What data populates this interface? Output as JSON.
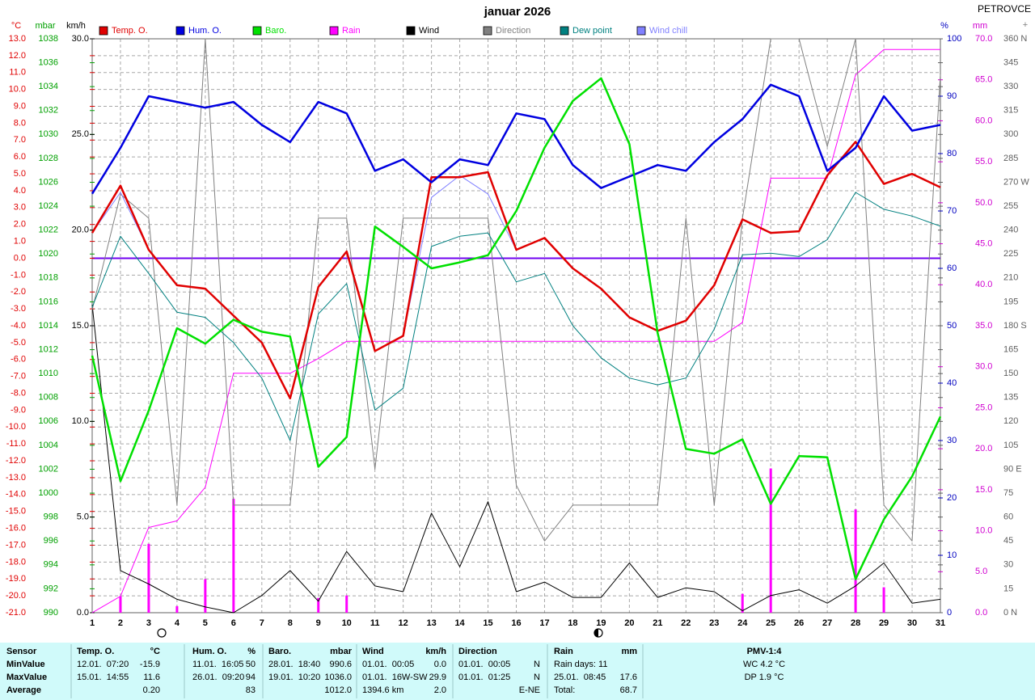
{
  "chart_data": {
    "type": "line",
    "title": "januar 2026",
    "station": "PETROVCE",
    "corner_mark": "+",
    "x": [
      1,
      2,
      3,
      4,
      5,
      6,
      7,
      8,
      9,
      10,
      11,
      12,
      13,
      14,
      15,
      16,
      17,
      18,
      19,
      20,
      21,
      22,
      23,
      24,
      25,
      26,
      27,
      28,
      29,
      30,
      31
    ],
    "xlim": [
      1,
      31
    ],
    "xticks": [
      1,
      2,
      3,
      4,
      5,
      6,
      7,
      8,
      9,
      10,
      11,
      12,
      13,
      14,
      15,
      16,
      17,
      18,
      19,
      20,
      21,
      22,
      23,
      24,
      25,
      26,
      27,
      28,
      29,
      30,
      31
    ],
    "grid": true,
    "ylabel": "°C",
    "ylim": [
      -21,
      13
    ],
    "yticks": [
      {
        "value": -21,
        "label": "-21.0"
      },
      {
        "value": -20,
        "label": "-20.0"
      },
      {
        "value": -19,
        "label": "-19.0"
      },
      {
        "value": -18,
        "label": "-18.0"
      },
      {
        "value": -17,
        "label": "-17.0"
      },
      {
        "value": -16,
        "label": "-16.0"
      },
      {
        "value": -15,
        "label": "-15.0"
      },
      {
        "value": -14,
        "label": "-14.0"
      },
      {
        "value": -13,
        "label": "-13.0"
      },
      {
        "value": -12,
        "label": "-12.0"
      },
      {
        "value": -11,
        "label": "-11.0"
      },
      {
        "value": -10,
        "label": "-10.0"
      },
      {
        "value": -9,
        "label": "-9.0"
      },
      {
        "value": -8,
        "label": "-8.0"
      },
      {
        "value": -7,
        "label": "-7.0"
      },
      {
        "value": -6,
        "label": "-6.0"
      },
      {
        "value": -5,
        "label": "-5.0"
      },
      {
        "value": -4,
        "label": "-4.0"
      },
      {
        "value": -3,
        "label": "-3.0"
      },
      {
        "value": -2,
        "label": "-2.0"
      },
      {
        "value": -1,
        "label": "-1.0"
      },
      {
        "value": 0,
        "label": "0.0"
      },
      {
        "value": 1,
        "label": "1.0"
      },
      {
        "value": 2,
        "label": "2.0"
      },
      {
        "value": 3,
        "label": "3.0"
      },
      {
        "value": 4,
        "label": "4.0"
      },
      {
        "value": 5,
        "label": "5.0"
      },
      {
        "value": 6,
        "label": "6.0"
      },
      {
        "value": 7,
        "label": "7.0"
      },
      {
        "value": 8,
        "label": "8.0"
      },
      {
        "value": 9,
        "label": "9.0"
      },
      {
        "value": 10,
        "label": "10.0"
      },
      {
        "value": 11,
        "label": "11.0"
      },
      {
        "value": 12,
        "label": "12.0"
      },
      {
        "value": 13,
        "label": "13.0"
      }
    ],
    "y2label": "mbar",
    "y2lim": [
      990,
      1038
    ],
    "y2ticks": [
      990,
      992,
      994,
      996,
      998,
      1000,
      1002,
      1004,
      1006,
      1008,
      1010,
      1012,
      1014,
      1016,
      1018,
      1020,
      1022,
      1024,
      1026,
      1028,
      1030,
      1032,
      1034,
      1036,
      1038
    ],
    "y3label": "km/h",
    "y3lim": [
      0,
      30
    ],
    "y3ticks": [
      {
        "value": 0,
        "label": "0.0"
      },
      {
        "value": 5,
        "label": "5.0"
      },
      {
        "value": 10,
        "label": "10.0"
      },
      {
        "value": 15,
        "label": "15.0"
      },
      {
        "value": 20,
        "label": "20.0"
      },
      {
        "value": 25,
        "label": "25.0"
      },
      {
        "value": 30,
        "label": "30.0"
      }
    ],
    "y4label": "%",
    "y4lim": [
      0,
      100
    ],
    "y4ticks": [
      0,
      10,
      20,
      30,
      40,
      50,
      60,
      70,
      80,
      90,
      100
    ],
    "y5label": "mm",
    "y5lim": [
      0,
      70
    ],
    "y5ticks": [
      {
        "value": 0,
        "label": "0.0"
      },
      {
        "value": 5,
        "label": "5.0"
      },
      {
        "value": 10,
        "label": "10.0"
      },
      {
        "value": 15,
        "label": "15.0"
      },
      {
        "value": 20,
        "label": "20.0"
      },
      {
        "value": 25,
        "label": "25.0"
      },
      {
        "value": 30,
        "label": "30.0"
      },
      {
        "value": 35,
        "label": "35.0"
      },
      {
        "value": 40,
        "label": "40.0"
      },
      {
        "value": 45,
        "label": "45.0"
      },
      {
        "value": 50,
        "label": "50.0"
      },
      {
        "value": 55,
        "label": "55.0"
      },
      {
        "value": 60,
        "label": "60.0"
      },
      {
        "value": 65,
        "label": "65.0"
      },
      {
        "value": 70,
        "label": "70.0"
      }
    ],
    "y6lim": [
      0,
      360
    ],
    "y6ticks": [
      {
        "value": 0,
        "label": "0 N"
      },
      15,
      30,
      45,
      60,
      75,
      {
        "value": 90,
        "label": "90 E"
      },
      105,
      120,
      135,
      150,
      165,
      {
        "value": 180,
        "label": "180 S"
      },
      195,
      210,
      225,
      240,
      255,
      {
        "value": 270,
        "label": "270 W"
      },
      285,
      300,
      315,
      330,
      345,
      {
        "value": 360,
        "label": "360 N"
      }
    ],
    "series": [
      {
        "name": "Temp. O.",
        "color": "#e00000",
        "axis": "y",
        "line_width": 2.5,
        "values": [
          1.5,
          4.3,
          0.5,
          -1.6,
          -1.8,
          -3.4,
          -5.0,
          -8.3,
          -1.7,
          0.4,
          -5.5,
          -4.6,
          4.8,
          4.8,
          5.1,
          0.5,
          1.2,
          -0.6,
          -1.8,
          -3.5,
          -4.3,
          -3.7,
          -1.6,
          2.3,
          1.5,
          1.6,
          4.9,
          6.9,
          4.4,
          5.0,
          4.2
        ]
      },
      {
        "name": "Hum. O.",
        "color": "#0000e0",
        "axis": "y4",
        "line_width": 2.5,
        "values": [
          73,
          81,
          90,
          89,
          88,
          89,
          85,
          82,
          89,
          87,
          77,
          79,
          75,
          79,
          78,
          87,
          86,
          78,
          74,
          76,
          78,
          77,
          82,
          86,
          92,
          90,
          77,
          81,
          90,
          84,
          85
        ]
      },
      {
        "name": "Baro.",
        "color": "#00e000",
        "axis": "y2",
        "line_width": 2.5,
        "values": [
          1011.5,
          1001.0,
          1006.9,
          1013.8,
          1012.5,
          1014.5,
          1013.5,
          1013.1,
          1002.2,
          1004.7,
          1022.3,
          1020.6,
          1018.8,
          1019.3,
          1019.9,
          1023.6,
          1028.9,
          1032.8,
          1034.7,
          1029.2,
          1013.4,
          1003.7,
          1003.3,
          1004.5,
          999.1,
          1003.1,
          1003.0,
          992.8,
          997.8,
          1001.4,
          1006.4
        ]
      },
      {
        "name": "Rain",
        "color": "#ff00ff",
        "axis": "y5",
        "line_width": 1,
        "type": "bar",
        "cumulative": true,
        "values": [
          0,
          2.0,
          8.4,
          0.8,
          4.1,
          13.9,
          0,
          0,
          1.8,
          2.1,
          0,
          0,
          0,
          0,
          0,
          0,
          0,
          0,
          0,
          0,
          0,
          0,
          0,
          2.3,
          17.6,
          0,
          0,
          12.6,
          3.1,
          0,
          0
        ]
      },
      {
        "name": "Wind",
        "color": "#000000",
        "axis": "y3",
        "line_width": 1,
        "values": [
          16.1,
          2.2,
          1.5,
          0.7,
          0.3,
          0.0,
          0.9,
          2.2,
          0.6,
          3.2,
          1.4,
          1.1,
          5.2,
          2.4,
          5.8,
          1.1,
          1.6,
          0.8,
          0.8,
          2.6,
          0.8,
          1.3,
          1.1,
          0.1,
          0.9,
          1.2,
          0.5,
          1.4,
          2.6,
          0.5,
          0.7
        ]
      },
      {
        "name": "Direction",
        "color": "#808080",
        "axis": "y6",
        "line_width": 1,
        "values": [
          190,
          262.5,
          247.5,
          67.5,
          360,
          67.5,
          67.5,
          67.5,
          247.5,
          247.5,
          90,
          247.5,
          247.5,
          247.5,
          247.5,
          80,
          45,
          67.5,
          67.5,
          67.5,
          67.5,
          247.5,
          67.5,
          247.5,
          360,
          360,
          292.5,
          360,
          67.5,
          45,
          337.5
        ]
      },
      {
        "name": "Dew point",
        "color": "#008080",
        "axis": "y",
        "line_width": 1,
        "values": [
          -2.9,
          1.3,
          -0.9,
          -3.2,
          -3.5,
          -5.0,
          -7.1,
          -10.8,
          -3.3,
          -1.5,
          -9.0,
          -7.7,
          0.7,
          1.3,
          1.5,
          -1.4,
          -0.9,
          -4.0,
          -5.9,
          -7.1,
          -7.5,
          -7.1,
          -4.2,
          0.2,
          0.3,
          0.1,
          1.1,
          3.9,
          2.9,
          2.5,
          1.9
        ]
      },
      {
        "name": "Wind chill",
        "color": "#8080ff",
        "axis": "y",
        "line_width": 1,
        "values": [
          1.5,
          3.9,
          0.5,
          -1.6,
          -1.8,
          -3.4,
          -5.0,
          -8.3,
          -1.7,
          0.4,
          -5.5,
          -4.6,
          3.6,
          4.9,
          3.8,
          0.5,
          1.2,
          -0.6,
          -1.8,
          -3.5,
          -4.3,
          -3.7,
          -1.6,
          2.3,
          1.5,
          1.6,
          4.9,
          6.9,
          4.4,
          5.0,
          4.2
        ]
      }
    ]
  },
  "stats": {
    "header": [
      "Sensor",
      "Temp. O.",
      "°C",
      "Hum. O.",
      "%",
      "Baro.",
      "mbar",
      "Wind",
      "km/h",
      "Direction",
      null,
      "Rain",
      "mm",
      "PMV-1:4"
    ],
    "rows": [
      [
        "MinValue",
        "12.01.  07:20",
        "-15.9",
        "11.01.  16:05",
        "50",
        "28.01.  18:40",
        "990.6",
        "01.01.  00:05",
        "0.0",
        "01.01.  00:05",
        "N",
        "Rain days: 11",
        null,
        "WC 4.2 °C"
      ],
      [
        "MaxValue",
        "15.01.  14:55",
        "11.6",
        "26.01.  09:20",
        "94",
        "19.01.  10:20",
        "1036.0",
        "01.01.  16W-SW",
        "29.9",
        "01.01.  01:25",
        "N",
        "25.01.  08:45",
        "17.6",
        "DP 1.9 °C"
      ],
      [
        "Average",
        null,
        "0.20",
        null,
        "83",
        null,
        "1012.0",
        "1394.6 km",
        "2.0",
        null,
        "E-NE",
        "Total:",
        "68.7",
        null
      ]
    ]
  }
}
